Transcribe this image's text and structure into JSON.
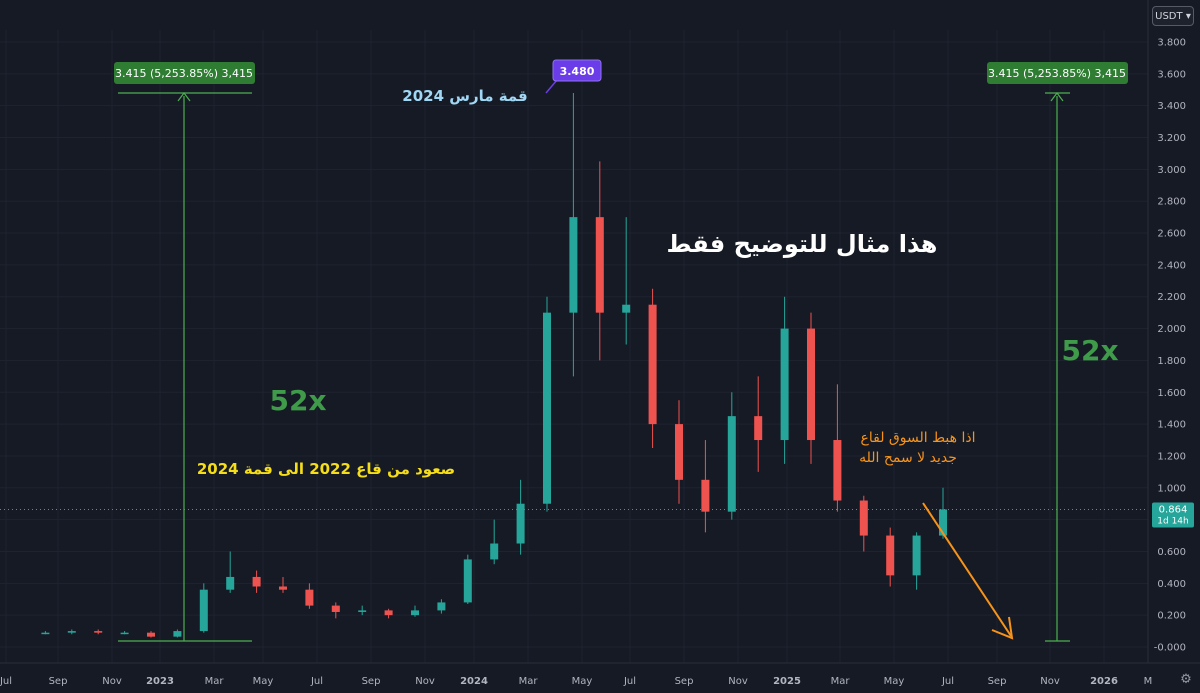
{
  "currency_selector": "USDT",
  "chart_data": {
    "type": "candlestick",
    "ylim": [
      0.0,
      3.8
    ],
    "y_ticks": [
      "3.800",
      "3.600",
      "3.400",
      "3.200",
      "3.000",
      "2.800",
      "2.600",
      "2.400",
      "2.200",
      "2.000",
      "1.800",
      "1.600",
      "1.400",
      "1.200",
      "1.000",
      "0.800",
      "0.600",
      "0.400",
      "0.200",
      "-0.000"
    ],
    "x_ticks": [
      "Jul",
      "Sep",
      "Nov",
      "2023",
      "Mar",
      "May",
      "Jul",
      "Sep",
      "Nov",
      "2024",
      "Mar",
      "May",
      "Jul",
      "Sep",
      "Nov",
      "2025",
      "Mar",
      "May",
      "Jul",
      "Sep",
      "Nov",
      "2026",
      "M"
    ],
    "last_price": {
      "value": "0.864",
      "countdown": "1d 14h"
    },
    "candles": [
      {
        "x": "2022-07",
        "o": 0.09,
        "h": 0.1,
        "l": 0.08,
        "c": 0.09
      },
      {
        "x": "2022-08",
        "o": 0.09,
        "h": 0.11,
        "l": 0.08,
        "c": 0.1
      },
      {
        "x": "2022-09",
        "o": 0.1,
        "h": 0.11,
        "l": 0.08,
        "c": 0.09
      },
      {
        "x": "2022-10",
        "o": 0.09,
        "h": 0.1,
        "l": 0.08,
        "c": 0.09
      },
      {
        "x": "2022-11",
        "o": 0.09,
        "h": 0.1,
        "l": 0.06,
        "c": 0.065
      },
      {
        "x": "2022-12",
        "o": 0.065,
        "h": 0.11,
        "l": 0.06,
        "c": 0.1
      },
      {
        "x": "2023-01",
        "o": 0.1,
        "h": 0.4,
        "l": 0.09,
        "c": 0.36
      },
      {
        "x": "2023-02",
        "o": 0.36,
        "h": 0.6,
        "l": 0.34,
        "c": 0.44
      },
      {
        "x": "2023-03",
        "o": 0.44,
        "h": 0.48,
        "l": 0.34,
        "c": 0.38
      },
      {
        "x": "2023-04",
        "o": 0.38,
        "h": 0.44,
        "l": 0.34,
        "c": 0.36
      },
      {
        "x": "2023-05",
        "o": 0.36,
        "h": 0.4,
        "l": 0.24,
        "c": 0.26
      },
      {
        "x": "2023-06",
        "o": 0.26,
        "h": 0.28,
        "l": 0.18,
        "c": 0.22
      },
      {
        "x": "2023-07",
        "o": 0.22,
        "h": 0.26,
        "l": 0.2,
        "c": 0.23
      },
      {
        "x": "2023-08",
        "o": 0.23,
        "h": 0.24,
        "l": 0.18,
        "c": 0.2
      },
      {
        "x": "2023-09",
        "o": 0.2,
        "h": 0.26,
        "l": 0.19,
        "c": 0.23
      },
      {
        "x": "2023-10",
        "o": 0.23,
        "h": 0.3,
        "l": 0.21,
        "c": 0.28
      },
      {
        "x": "2023-11",
        "o": 0.28,
        "h": 0.58,
        "l": 0.27,
        "c": 0.55
      },
      {
        "x": "2023-12",
        "o": 0.55,
        "h": 0.8,
        "l": 0.52,
        "c": 0.65
      },
      {
        "x": "2024-01",
        "o": 0.65,
        "h": 1.05,
        "l": 0.58,
        "c": 0.9
      },
      {
        "x": "2024-02",
        "o": 0.9,
        "h": 2.2,
        "l": 0.85,
        "c": 2.1
      },
      {
        "x": "2024-03",
        "o": 2.1,
        "h": 3.48,
        "l": 1.7,
        "c": 2.7
      },
      {
        "x": "2024-04",
        "o": 2.7,
        "h": 3.05,
        "l": 1.8,
        "c": 2.1
      },
      {
        "x": "2024-05",
        "o": 2.1,
        "h": 2.7,
        "l": 1.9,
        "c": 2.15
      },
      {
        "x": "2024-06",
        "o": 2.15,
        "h": 2.25,
        "l": 1.25,
        "c": 1.4
      },
      {
        "x": "2024-07",
        "o": 1.4,
        "h": 1.55,
        "l": 0.9,
        "c": 1.05
      },
      {
        "x": "2024-08",
        "o": 1.05,
        "h": 1.3,
        "l": 0.72,
        "c": 0.85
      },
      {
        "x": "2024-09",
        "o": 0.85,
        "h": 1.6,
        "l": 0.8,
        "c": 1.45
      },
      {
        "x": "2024-10",
        "o": 1.45,
        "h": 1.7,
        "l": 1.1,
        "c": 1.3
      },
      {
        "x": "2024-11",
        "o": 1.3,
        "h": 2.2,
        "l": 1.15,
        "c": 2.0
      },
      {
        "x": "2024-12",
        "o": 2.0,
        "h": 2.1,
        "l": 1.15,
        "c": 1.3
      },
      {
        "x": "2025-01",
        "o": 1.3,
        "h": 1.65,
        "l": 0.85,
        "c": 0.92
      },
      {
        "x": "2025-02",
        "o": 0.92,
        "h": 0.95,
        "l": 0.6,
        "c": 0.7
      },
      {
        "x": "2025-03",
        "o": 0.7,
        "h": 0.75,
        "l": 0.38,
        "c": 0.45
      },
      {
        "x": "2025-04",
        "o": 0.45,
        "h": 0.72,
        "l": 0.36,
        "c": 0.7
      },
      {
        "x": "2025-05",
        "o": 0.7,
        "h": 1.0,
        "l": 0.68,
        "c": 0.864
      }
    ]
  },
  "annotations": {
    "measure_label_left": "3.415 (5,253.85%) 3,415",
    "measure_label_right": "3.415 (5,253.85%) 3,415",
    "peak_badge": "3.480",
    "peak_label": "قمة مارس 2024",
    "disclaimer": "هذا مثال للتوضيح فقط",
    "multiple_left": "52x",
    "multiple_right": "52x",
    "rise_note": "صعود من قاع 2022 الى قمة 2024",
    "drop_note_line1": "اذا هبط السوق لقاع",
    "drop_note_line2": "جديد لا سمح الله"
  },
  "colors": {
    "background": "#161a25",
    "up": "#26a69a",
    "down": "#ef5350",
    "measure_green": "#4caf50",
    "badge_purple": "#6a3de8",
    "arrow_orange": "#f7931a",
    "note_yellow": "#f5dd1a",
    "peak_text": "#9fd7f5"
  }
}
